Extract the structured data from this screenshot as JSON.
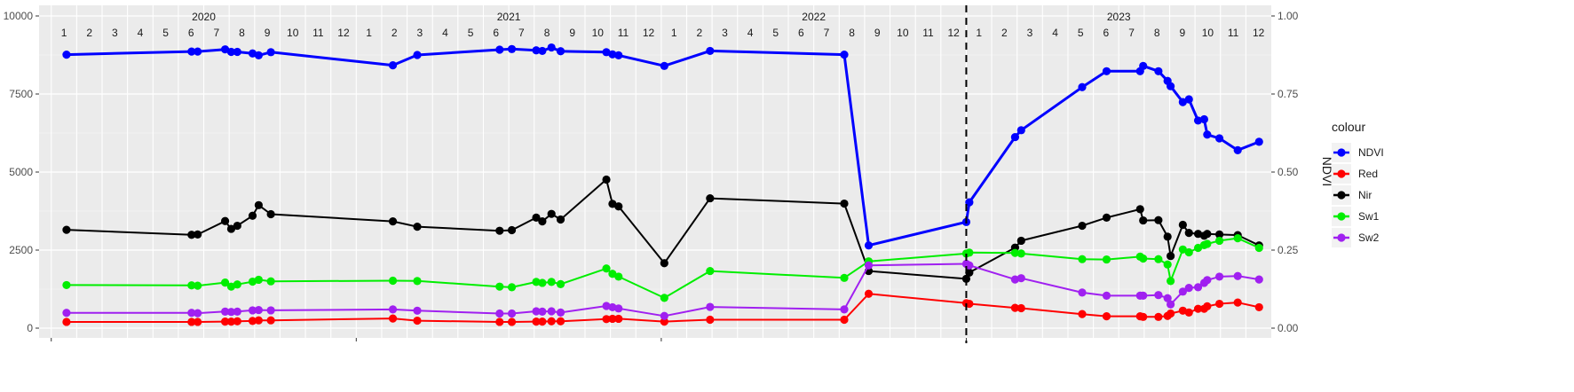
{
  "chart_data": {
    "type": "line",
    "title": "",
    "xlabel": "",
    "ylabel": "",
    "y2label": "NDVI",
    "ylim": [
      0,
      10000
    ],
    "y2lim": [
      0,
      1
    ],
    "grid": true,
    "legend": {
      "title": "colour",
      "placement": "right"
    },
    "y_ticks": [
      {
        "value": 0,
        "label": "0"
      },
      {
        "value": 2500,
        "label": "2500"
      },
      {
        "value": 5000,
        "label": "5000"
      },
      {
        "value": 7500,
        "label": "7500"
      },
      {
        "value": 10000,
        "label": "10000"
      }
    ],
    "y2_ticks": [
      {
        "value": 0,
        "label": "0.00"
      },
      {
        "value": 0.25,
        "label": "0.25"
      },
      {
        "value": 0.5,
        "label": "0.50"
      },
      {
        "value": 0.75,
        "label": "0.75"
      },
      {
        "value": 1,
        "label": "1.00"
      }
    ],
    "years": [
      {
        "label": "2020",
        "start": 2020.0
      },
      {
        "label": "2021",
        "start": 2021.0
      },
      {
        "label": "2022",
        "start": 2022.0
      },
      {
        "label": "2023",
        "start": 2023.0
      }
    ],
    "month_labels": [
      "1",
      "2",
      "3",
      "4",
      "5",
      "6",
      "7",
      "8",
      "9",
      "10",
      "11",
      "12"
    ],
    "vertical_line": {
      "x": 2023.0,
      "style": "dashed"
    },
    "x_range": [
      2019.96,
      2024.0
    ],
    "series": [
      {
        "name": "NDVI",
        "color": "#0000ff",
        "axis": "y2",
        "x": [
          2020.05,
          2020.46,
          2020.48,
          2020.57,
          2020.59,
          2020.61,
          2020.66,
          2020.68,
          2020.72,
          2021.12,
          2021.2,
          2021.47,
          2021.51,
          2021.59,
          2021.61,
          2021.64,
          2021.67,
          2021.82,
          2021.84,
          2021.86,
          2022.01,
          2022.16,
          2022.6,
          2022.68,
          2023.0,
          2023.01,
          2023.16,
          2023.18,
          2023.38,
          2023.46,
          2023.57,
          2023.58,
          2023.63,
          2023.66,
          2023.67,
          2023.71,
          2023.73,
          2023.76,
          2023.78,
          2023.79,
          2023.83,
          2023.89,
          2023.96
        ],
        "values": [
          0.876,
          0.886,
          0.886,
          0.893,
          0.885,
          0.885,
          0.88,
          0.874,
          0.884,
          0.842,
          0.875,
          0.892,
          0.894,
          0.89,
          0.888,
          0.899,
          0.887,
          0.884,
          0.877,
          0.874,
          0.84,
          0.888,
          0.876,
          0.265,
          0.34,
          0.403,
          0.612,
          0.634,
          0.772,
          0.823,
          0.823,
          0.84,
          0.823,
          0.792,
          0.775,
          0.724,
          0.733,
          0.665,
          0.669,
          0.62,
          0.608,
          0.57,
          0.597
        ]
      },
      {
        "name": "Red",
        "color": "#ff0000",
        "axis": "y",
        "x": [
          2020.05,
          2020.46,
          2020.48,
          2020.57,
          2020.59,
          2020.61,
          2020.66,
          2020.68,
          2020.72,
          2021.12,
          2021.2,
          2021.47,
          2021.51,
          2021.59,
          2021.61,
          2021.64,
          2021.67,
          2021.82,
          2021.84,
          2021.86,
          2022.01,
          2022.16,
          2022.6,
          2022.68,
          2023.0,
          2023.01,
          2023.16,
          2023.18,
          2023.38,
          2023.46,
          2023.57,
          2023.58,
          2023.63,
          2023.66,
          2023.67,
          2023.71,
          2023.73,
          2023.76,
          2023.78,
          2023.79,
          2023.83,
          2023.89,
          2023.96
        ],
        "values": [
          200,
          200,
          200,
          210,
          210,
          220,
          230,
          250,
          250,
          310,
          240,
          200,
          200,
          210,
          210,
          220,
          220,
          290,
          300,
          300,
          210,
          270,
          270,
          1100,
          800,
          780,
          650,
          640,
          450,
          380,
          380,
          360,
          360,
          390,
          470,
          560,
          500,
          620,
          620,
          700,
          780,
          820,
          670
        ]
      },
      {
        "name": "Nir",
        "color": "#000000",
        "axis": "y",
        "x": [
          2020.05,
          2020.46,
          2020.48,
          2020.57,
          2020.59,
          2020.61,
          2020.66,
          2020.68,
          2020.72,
          2021.12,
          2021.2,
          2021.47,
          2021.51,
          2021.59,
          2021.61,
          2021.64,
          2021.67,
          2021.82,
          2021.84,
          2021.86,
          2022.01,
          2022.16,
          2022.6,
          2022.68,
          2023.0,
          2023.01,
          2023.16,
          2023.18,
          2023.38,
          2023.46,
          2023.57,
          2023.58,
          2023.63,
          2023.66,
          2023.67,
          2023.71,
          2023.73,
          2023.76,
          2023.78,
          2023.79,
          2023.83,
          2023.89,
          2023.96
        ],
        "values": [
          3150,
          2990,
          3000,
          3430,
          3180,
          3280,
          3600,
          3940,
          3650,
          3420,
          3250,
          3120,
          3140,
          3540,
          3420,
          3660,
          3480,
          4760,
          3980,
          3900,
          2080,
          4160,
          3990,
          1830,
          1580,
          1780,
          2580,
          2800,
          3280,
          3540,
          3810,
          3450,
          3460,
          2930,
          2310,
          3310,
          3050,
          3020,
          2960,
          3020,
          3000,
          2980,
          2650
        ]
      },
      {
        "name": "Sw1",
        "color": "#00ee00",
        "axis": "y",
        "x": [
          2020.05,
          2020.46,
          2020.48,
          2020.57,
          2020.59,
          2020.61,
          2020.66,
          2020.68,
          2020.72,
          2021.12,
          2021.2,
          2021.47,
          2021.51,
          2021.59,
          2021.61,
          2021.64,
          2021.67,
          2021.82,
          2021.84,
          2021.86,
          2022.01,
          2022.16,
          2022.6,
          2022.68,
          2023.0,
          2023.01,
          2023.16,
          2023.18,
          2023.38,
          2023.46,
          2023.57,
          2023.58,
          2023.63,
          2023.66,
          2023.67,
          2023.71,
          2023.73,
          2023.76,
          2023.78,
          2023.79,
          2023.83,
          2023.89,
          2023.96
        ],
        "values": [
          1380,
          1370,
          1360,
          1460,
          1330,
          1400,
          1490,
          1550,
          1500,
          1520,
          1510,
          1330,
          1310,
          1480,
          1450,
          1480,
          1410,
          1910,
          1740,
          1650,
          970,
          1830,
          1610,
          2140,
          2390,
          2420,
          2410,
          2390,
          2210,
          2200,
          2290,
          2230,
          2210,
          2040,
          1510,
          2520,
          2430,
          2570,
          2660,
          2700,
          2800,
          2880,
          2570
        ]
      },
      {
        "name": "Sw2",
        "color": "#a020f0",
        "axis": "y",
        "x": [
          2020.05,
          2020.46,
          2020.48,
          2020.57,
          2020.59,
          2020.61,
          2020.66,
          2020.68,
          2020.72,
          2021.12,
          2021.2,
          2021.47,
          2021.51,
          2021.59,
          2021.61,
          2021.64,
          2021.67,
          2021.82,
          2021.84,
          2021.86,
          2022.01,
          2022.16,
          2022.6,
          2022.68,
          2023.0,
          2023.01,
          2023.16,
          2023.18,
          2023.38,
          2023.46,
          2023.57,
          2023.58,
          2023.63,
          2023.66,
          2023.67,
          2023.71,
          2023.73,
          2023.76,
          2023.78,
          2023.79,
          2023.83,
          2023.89,
          2023.96
        ],
        "values": [
          490,
          490,
          480,
          530,
          520,
          530,
          570,
          580,
          570,
          600,
          560,
          470,
          470,
          540,
          530,
          540,
          500,
          710,
          670,
          630,
          390,
          680,
          600,
          2010,
          2060,
          2010,
          1560,
          1600,
          1140,
          1040,
          1040,
          1040,
          1060,
          960,
          760,
          1170,
          1290,
          1310,
          1450,
          1540,
          1650,
          1670,
          1560
        ]
      }
    ]
  }
}
